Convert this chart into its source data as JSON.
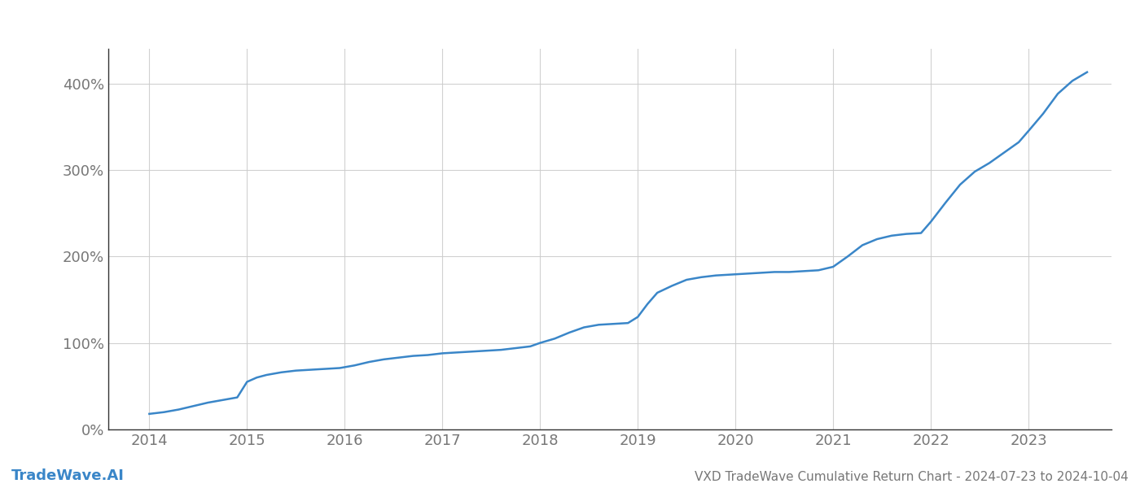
{
  "title": "VXD TradeWave Cumulative Return Chart - 2024-07-23 to 2024-10-04",
  "watermark": "TradeWave.AI",
  "line_color": "#3a86c8",
  "background_color": "#ffffff",
  "grid_color": "#cccccc",
  "x_years": [
    2014,
    2015,
    2016,
    2017,
    2018,
    2019,
    2020,
    2021,
    2022,
    2023
  ],
  "data_x": [
    2014.0,
    2014.15,
    2014.3,
    2014.45,
    2014.6,
    2014.75,
    2014.9,
    2015.0,
    2015.1,
    2015.2,
    2015.35,
    2015.5,
    2015.65,
    2015.8,
    2015.95,
    2016.1,
    2016.25,
    2016.4,
    2016.55,
    2016.7,
    2016.85,
    2017.0,
    2017.15,
    2017.3,
    2017.45,
    2017.6,
    2017.75,
    2017.9,
    2018.0,
    2018.15,
    2018.3,
    2018.45,
    2018.6,
    2018.75,
    2018.9,
    2019.0,
    2019.1,
    2019.2,
    2019.35,
    2019.5,
    2019.65,
    2019.8,
    2019.95,
    2020.1,
    2020.25,
    2020.4,
    2020.55,
    2020.7,
    2020.85,
    2021.0,
    2021.15,
    2021.3,
    2021.45,
    2021.6,
    2021.75,
    2021.9,
    2022.0,
    2022.15,
    2022.3,
    2022.45,
    2022.6,
    2022.75,
    2022.9,
    2023.0,
    2023.15,
    2023.3,
    2023.45,
    2023.6
  ],
  "data_y": [
    18,
    20,
    23,
    27,
    31,
    34,
    37,
    55,
    60,
    63,
    66,
    68,
    69,
    70,
    71,
    74,
    78,
    81,
    83,
    85,
    86,
    88,
    89,
    90,
    91,
    92,
    94,
    96,
    100,
    105,
    112,
    118,
    121,
    122,
    123,
    130,
    145,
    158,
    166,
    173,
    176,
    178,
    179,
    180,
    181,
    182,
    182,
    183,
    184,
    188,
    200,
    213,
    220,
    224,
    226,
    227,
    240,
    262,
    283,
    298,
    308,
    320,
    332,
    345,
    365,
    388,
    403,
    413
  ],
  "ylim": [
    0,
    440
  ],
  "yticks": [
    0,
    100,
    200,
    300,
    400
  ],
  "xlim": [
    2013.58,
    2023.85
  ],
  "title_fontsize": 11,
  "tick_fontsize": 13,
  "watermark_fontsize": 13,
  "line_width": 1.8,
  "spine_color": "#333333"
}
